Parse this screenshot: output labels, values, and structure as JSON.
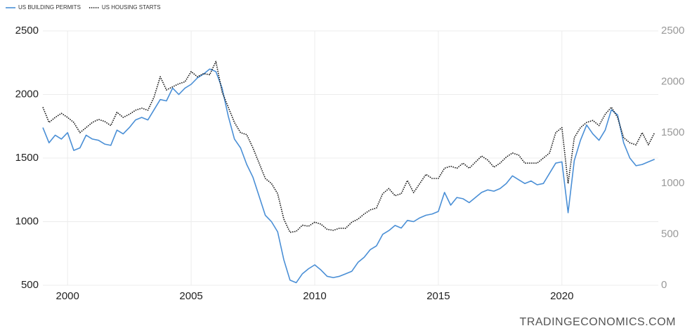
{
  "chart_data": {
    "type": "line",
    "x": [
      1999,
      1999.25,
      1999.5,
      1999.75,
      2000,
      2000.25,
      2000.5,
      2000.75,
      2001,
      2001.25,
      2001.5,
      2001.75,
      2002,
      2002.25,
      2002.5,
      2002.75,
      2003,
      2003.25,
      2003.5,
      2003.75,
      2004,
      2004.25,
      2004.5,
      2004.75,
      2005,
      2005.25,
      2005.5,
      2005.75,
      2006,
      2006.25,
      2006.5,
      2006.75,
      2007,
      2007.25,
      2007.5,
      2007.75,
      2008,
      2008.25,
      2008.5,
      2008.75,
      2009,
      2009.25,
      2009.5,
      2009.75,
      2010,
      2010.25,
      2010.5,
      2010.75,
      2011,
      2011.25,
      2011.5,
      2011.75,
      2012,
      2012.25,
      2012.5,
      2012.75,
      2013,
      2013.25,
      2013.5,
      2013.75,
      2014,
      2014.25,
      2014.5,
      2014.75,
      2015,
      2015.25,
      2015.5,
      2015.75,
      2016,
      2016.25,
      2016.5,
      2016.75,
      2017,
      2017.25,
      2017.5,
      2017.75,
      2018,
      2018.25,
      2018.5,
      2018.75,
      2019,
      2019.25,
      2019.5,
      2019.75,
      2020,
      2020.25,
      2020.5,
      2020.75,
      2021,
      2021.25,
      2021.5,
      2021.75,
      2022,
      2022.25,
      2022.5,
      2022.75,
      2023,
      2023.25,
      2023.5,
      2023.75
    ],
    "series": [
      {
        "name": "US BUILDING PERMITS",
        "color": "#4a8fd6",
        "axis": "y",
        "dash": "solid",
        "values": [
          1740,
          1620,
          1680,
          1650,
          1700,
          1560,
          1580,
          1680,
          1650,
          1640,
          1610,
          1600,
          1720,
          1690,
          1740,
          1800,
          1820,
          1800,
          1880,
          1960,
          1950,
          2050,
          2000,
          2050,
          2080,
          2130,
          2160,
          2200,
          2180,
          2050,
          1830,
          1650,
          1580,
          1450,
          1350,
          1200,
          1050,
          1000,
          920,
          700,
          540,
          520,
          590,
          630,
          660,
          620,
          570,
          560,
          570,
          590,
          610,
          680,
          720,
          780,
          810,
          900,
          930,
          970,
          950,
          1010,
          1000,
          1030,
          1050,
          1060,
          1080,
          1230,
          1130,
          1190,
          1180,
          1150,
          1190,
          1230,
          1250,
          1240,
          1260,
          1300,
          1360,
          1330,
          1300,
          1320,
          1290,
          1300,
          1380,
          1460,
          1470,
          1070,
          1480,
          1640,
          1760,
          1690,
          1640,
          1720,
          1880,
          1840,
          1620,
          1500,
          1440,
          1450,
          1470,
          1490
        ]
      },
      {
        "name": "US HOUSING STARTS",
        "color": "#111111",
        "axis": "y2",
        "dash": "dotted",
        "values": [
          1750,
          1600,
          1650,
          1690,
          1650,
          1600,
          1500,
          1550,
          1600,
          1630,
          1610,
          1570,
          1700,
          1650,
          1680,
          1720,
          1740,
          1720,
          1850,
          2050,
          1920,
          1950,
          1980,
          2000,
          2100,
          2050,
          2080,
          2070,
          2200,
          1900,
          1750,
          1600,
          1500,
          1480,
          1350,
          1200,
          1050,
          1000,
          900,
          650,
          520,
          530,
          590,
          580,
          620,
          600,
          550,
          540,
          560,
          560,
          620,
          650,
          700,
          740,
          760,
          900,
          950,
          880,
          900,
          1030,
          910,
          1000,
          1090,
          1050,
          1050,
          1150,
          1170,
          1150,
          1200,
          1150,
          1210,
          1270,
          1230,
          1160,
          1200,
          1260,
          1300,
          1280,
          1200,
          1200,
          1200,
          1250,
          1300,
          1500,
          1550,
          1000,
          1450,
          1550,
          1600,
          1620,
          1570,
          1680,
          1750,
          1650,
          1450,
          1400,
          1380,
          1500,
          1380,
          1500
        ]
      }
    ],
    "xlim": [
      1999,
      2023.9
    ],
    "xticks": [
      2000,
      2005,
      2010,
      2015,
      2020
    ],
    "ylim": [
      500,
      2500
    ],
    "yticks": [
      500,
      1000,
      1500,
      2000,
      2500
    ],
    "y2lim": [
      0,
      2500
    ],
    "y2ticks": [
      0,
      500,
      1000,
      1500,
      2000,
      2500
    ],
    "grid": true,
    "legend": "top-left",
    "watermark": "TRADINGECONOMICS.COM"
  }
}
